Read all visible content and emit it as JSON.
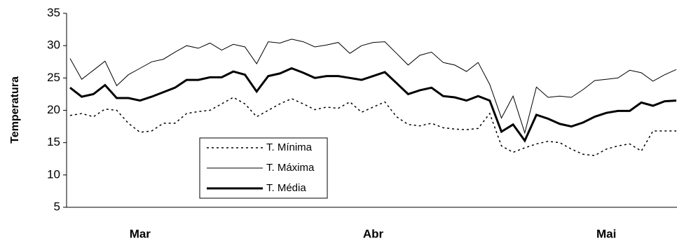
{
  "chart_data": {
    "type": "line",
    "ylabel": "Temperatura",
    "categories": [
      null,
      null,
      null,
      null,
      null,
      null,
      "Mar",
      null,
      null,
      null,
      null,
      null,
      null,
      null,
      null,
      null,
      null,
      null,
      null,
      null,
      null,
      null,
      null,
      null,
      null,
      null,
      "Abr",
      null,
      null,
      null,
      null,
      null,
      null,
      null,
      null,
      null,
      null,
      null,
      null,
      null,
      null,
      null,
      null,
      null,
      null,
      null,
      "Mai",
      null,
      null,
      null,
      null,
      null,
      null
    ],
    "ylim": [
      5,
      35
    ],
    "yticks": [
      5,
      10,
      15,
      20,
      25,
      30,
      35
    ],
    "grid": false,
    "legend": "lower-left",
    "series": [
      {
        "name": "T. Mínima",
        "color": "#000000",
        "style": "dotted",
        "width": 1.5,
        "values": [
          19.2,
          19.5,
          19.0,
          20.2,
          20.0,
          18.0,
          16.6,
          16.8,
          18.0,
          18.0,
          19.5,
          19.8,
          20.0,
          21.0,
          22.0,
          21.0,
          19.0,
          20.0,
          21.0,
          21.8,
          21.0,
          20.1,
          20.5,
          20.3,
          21.3,
          19.7,
          20.5,
          21.3,
          19.0,
          17.8,
          17.6,
          18.0,
          17.3,
          17.1,
          17.0,
          17.2,
          19.5,
          14.5,
          13.5,
          14.2,
          14.8,
          15.2,
          15.0,
          14.0,
          13.2,
          13.0,
          14.0,
          14.5,
          14.8,
          13.7,
          16.8,
          16.8,
          16.8
        ]
      },
      {
        "name": "T. Máxima",
        "color": "#000000",
        "style": "solid",
        "width": 1,
        "values": [
          28.0,
          24.8,
          26.2,
          27.6,
          23.8,
          25.5,
          26.5,
          27.5,
          27.9,
          29.0,
          30.0,
          29.6,
          30.4,
          29.3,
          30.2,
          29.8,
          27.2,
          30.6,
          30.4,
          31.0,
          30.6,
          29.8,
          30.1,
          30.5,
          28.8,
          30.0,
          30.5,
          30.6,
          28.8,
          27.0,
          28.5,
          29.0,
          27.4,
          27.0,
          26.0,
          27.4,
          24.0,
          18.8,
          22.2,
          16.5,
          23.6,
          22.0,
          22.2,
          22.0,
          23.2,
          24.6,
          24.8,
          25.0,
          26.2,
          25.8,
          24.5,
          25.5,
          26.3
        ]
      },
      {
        "name": "T. Média",
        "color": "#000000",
        "style": "solid",
        "width": 3,
        "values": [
          23.5,
          22.1,
          22.5,
          23.9,
          21.9,
          21.9,
          21.5,
          22.1,
          22.8,
          23.5,
          24.7,
          24.7,
          25.1,
          25.1,
          26.0,
          25.5,
          22.9,
          25.3,
          25.7,
          26.5,
          25.8,
          25.0,
          25.3,
          25.3,
          25.0,
          24.7,
          25.3,
          25.9,
          24.2,
          22.5,
          23.1,
          23.5,
          22.2,
          22.0,
          21.5,
          22.2,
          21.5,
          16.7,
          17.8,
          15.3,
          19.3,
          18.7,
          17.9,
          17.5,
          18.1,
          19.0,
          19.6,
          19.9,
          19.9,
          21.2,
          20.7,
          21.4,
          21.5
        ]
      }
    ]
  }
}
